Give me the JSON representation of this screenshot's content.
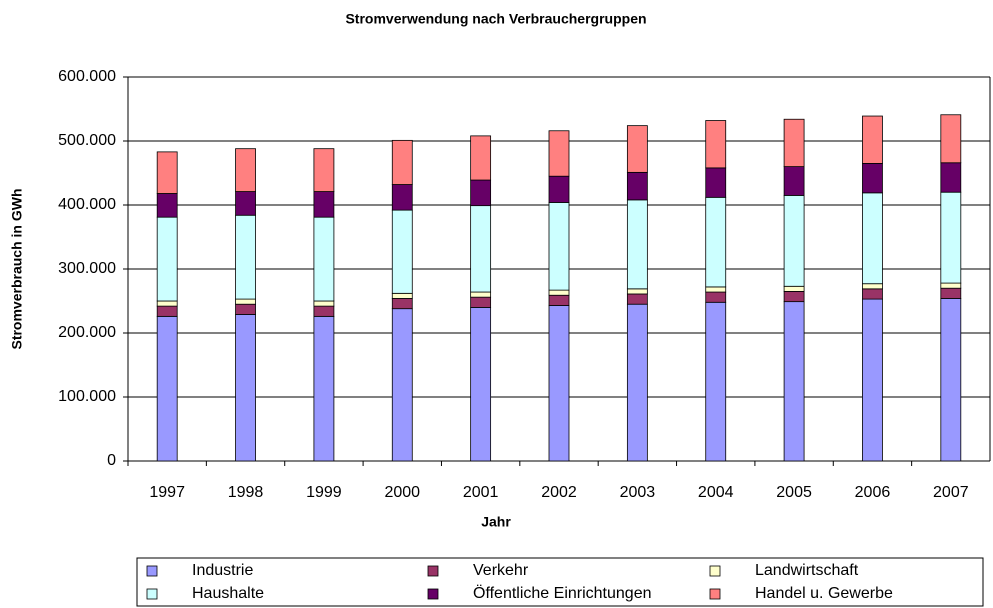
{
  "chart_data": {
    "type": "stacked_bar",
    "title": "Stromverwendung nach Verbrauchergruppen",
    "x_label": "Jahr",
    "y_label": "Stromverbrauch in GWh",
    "categories": [
      "1997",
      "1998",
      "1999",
      "2000",
      "2001",
      "2002",
      "2003",
      "2004",
      "2005",
      "2006",
      "2007"
    ],
    "series": [
      {
        "name": "Industrie",
        "color": "#9999ff",
        "values": [
          226000,
          229000,
          226000,
          238000,
          240000,
          243000,
          245000,
          248000,
          249000,
          253000,
          254000
        ]
      },
      {
        "name": "Verkehr",
        "color": "#993366",
        "values": [
          16000,
          16000,
          16000,
          16000,
          16000,
          16000,
          16000,
          16000,
          16000,
          16000,
          16000
        ]
      },
      {
        "name": "Landwirtschaft",
        "color": "#ffffcc",
        "values": [
          8000,
          8000,
          8000,
          8000,
          8000,
          8000,
          8000,
          8000,
          8000,
          8000,
          8000
        ]
      },
      {
        "name": "Haushalte",
        "color": "#ccffff",
        "values": [
          131000,
          131000,
          131000,
          130000,
          135000,
          137000,
          139000,
          140000,
          142000,
          142000,
          142000
        ]
      },
      {
        "name": "Öffentliche Einrichtungen",
        "color": "#660066",
        "values": [
          37000,
          37000,
          40000,
          40000,
          40000,
          41000,
          43000,
          46000,
          45000,
          46000,
          46000
        ]
      },
      {
        "name": "Handel u. Gewerbe",
        "color": "#ff8080",
        "values": [
          65000,
          67000,
          67000,
          69000,
          69000,
          71000,
          73000,
          74000,
          74000,
          74000,
          75000
        ]
      }
    ],
    "ylim": [
      0,
      600000
    ],
    "yticks": [
      0,
      {
        "value": 100000,
        "label": "100.000"
      },
      {
        "value": 200000,
        "label": "200.000"
      },
      {
        "value": 300000,
        "label": "300.000"
      },
      {
        "value": 400000,
        "label": "400.000"
      },
      {
        "value": 500000,
        "label": "500.000"
      },
      {
        "value": 600000,
        "label": "600.000"
      }
    ],
    "grid": true,
    "legend": "bottom"
  }
}
